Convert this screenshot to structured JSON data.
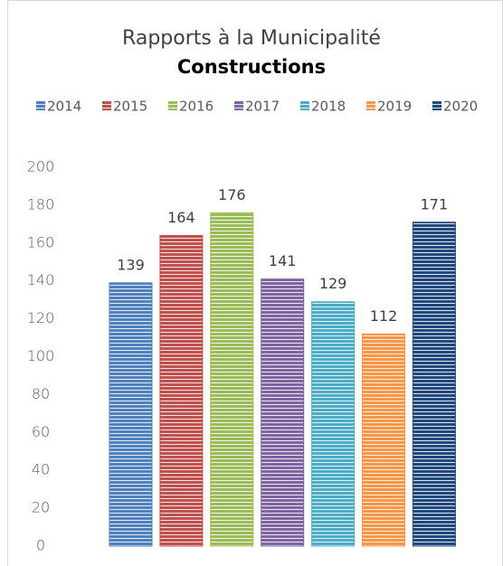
{
  "chart_data": {
    "type": "bar",
    "title": "Rapports à la Municipalité",
    "subtitle": "Constructions",
    "categories": [
      null
    ],
    "series": [
      {
        "name": "2014",
        "color": "#4f81bd",
        "values": [
          139
        ]
      },
      {
        "name": "2015",
        "color": "#c0504d",
        "values": [
          164
        ]
      },
      {
        "name": "2016",
        "color": "#9bbb59",
        "values": [
          176
        ]
      },
      {
        "name": "2017",
        "color": "#8064a2",
        "values": [
          141
        ]
      },
      {
        "name": "2018",
        "color": "#4bacc6",
        "values": [
          129
        ]
      },
      {
        "name": "2019",
        "color": "#f79646",
        "values": [
          112
        ]
      },
      {
        "name": "2020",
        "color": "#1f497d",
        "values": [
          171
        ]
      }
    ],
    "ylim": [
      0,
      200
    ],
    "yticks": [
      0,
      20,
      40,
      60,
      80,
      100,
      120,
      140,
      160,
      180,
      200
    ],
    "grid": false,
    "legend": "top"
  }
}
